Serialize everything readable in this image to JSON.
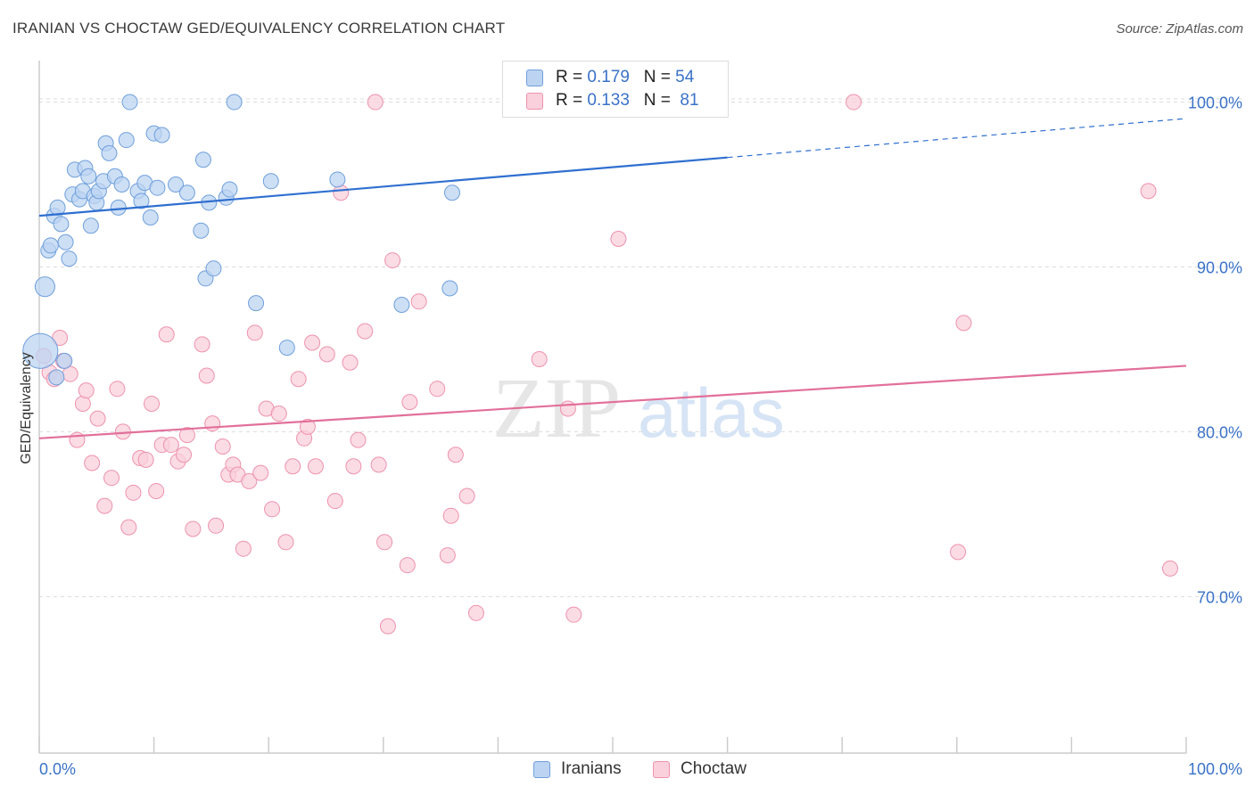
{
  "title": "IRANIAN VS CHOCTAW GED/EQUIVALENCY CORRELATION CHART",
  "source": "Source: ZipAtlas.com",
  "watermark": {
    "zip": "ZIP",
    "atlas": "atlas"
  },
  "legend": {
    "iranians": {
      "r_label": "R = ",
      "r_value": "0.179",
      "n_label": "N = ",
      "n_value": "54"
    },
    "choctaw": {
      "r_label": "R = ",
      "r_value": "0.133",
      "n_label": "N = ",
      "n_value": " 81"
    }
  },
  "bottom_legend": {
    "iranians": "Iranians",
    "choctaw": "Choctaw"
  },
  "colors": {
    "iranians_fill": "#bcd4f2",
    "iranians_stroke": "#6f9fdc",
    "iranians_line": "#2f6fd0",
    "choctaw_fill": "#fad0dc",
    "choctaw_stroke": "#ee92ad",
    "choctaw_line": "#e2709a",
    "tick_label": "#3a72c8",
    "grid": "#dcdcdc"
  },
  "chart_data": {
    "type": "scatter",
    "title": "IRANIAN VS CHOCTAW GED/EQUIVALENCY CORRELATION CHART",
    "xlabel": "",
    "ylabel": "GED/Equivalency",
    "xlim": [
      0,
      100
    ],
    "ylim": [
      60.5,
      102.3
    ],
    "x_tick_labels": [
      "0.0%",
      "100.0%"
    ],
    "y_ticks": [
      70,
      80,
      90,
      100
    ],
    "y_tick_labels": [
      "70.0%",
      "80.0%",
      "90.0%",
      "100.0%"
    ],
    "grid": true,
    "series": [
      {
        "name": "Iranians",
        "r": 0.179,
        "n": 54,
        "trend": {
          "x_solid_end": 60,
          "x_end": 100,
          "y0": 93.1,
          "y1": 99.0
        },
        "points": [
          [
            0.5,
            88.8
          ],
          [
            0.8,
            91.0
          ],
          [
            1.0,
            91.3
          ],
          [
            1.3,
            93.1
          ],
          [
            1.6,
            93.6
          ],
          [
            1.9,
            92.6
          ],
          [
            2.3,
            91.5
          ],
          [
            2.6,
            90.5
          ],
          [
            2.9,
            94.4
          ],
          [
            3.1,
            95.9
          ],
          [
            3.5,
            94.1
          ],
          [
            3.8,
            94.6
          ],
          [
            4.0,
            96.0
          ],
          [
            4.3,
            95.5
          ],
          [
            4.5,
            92.5
          ],
          [
            4.8,
            94.3
          ],
          [
            5.0,
            93.9
          ],
          [
            5.2,
            94.6
          ],
          [
            5.6,
            95.2
          ],
          [
            5.8,
            97.5
          ],
          [
            6.1,
            96.9
          ],
          [
            6.6,
            95.5
          ],
          [
            6.9,
            93.6
          ],
          [
            7.2,
            95.0
          ],
          [
            7.6,
            97.7
          ],
          [
            7.9,
            100.0
          ],
          [
            8.6,
            94.6
          ],
          [
            8.9,
            94.0
          ],
          [
            9.2,
            95.1
          ],
          [
            9.7,
            93.0
          ],
          [
            10.0,
            98.1
          ],
          [
            10.3,
            94.8
          ],
          [
            10.7,
            98.0
          ],
          [
            11.9,
            95.0
          ],
          [
            12.9,
            94.5
          ],
          [
            14.1,
            92.2
          ],
          [
            14.3,
            96.5
          ],
          [
            14.5,
            89.3
          ],
          [
            14.8,
            93.9
          ],
          [
            15.2,
            89.9
          ],
          [
            16.3,
            94.2
          ],
          [
            16.6,
            94.7
          ],
          [
            17.0,
            100.0
          ],
          [
            18.9,
            87.8
          ],
          [
            20.2,
            95.2
          ],
          [
            21.6,
            85.1
          ],
          [
            26.0,
            95.3
          ],
          [
            31.6,
            87.7
          ],
          [
            35.8,
            88.7
          ],
          [
            36.0,
            94.5
          ],
          [
            52.5,
            100.0
          ],
          [
            0.1,
            84.9
          ],
          [
            1.5,
            83.3
          ],
          [
            2.2,
            84.3
          ]
        ],
        "point_sizes": [
          1.3,
          1,
          1,
          1,
          1,
          1,
          1,
          1,
          1,
          1,
          1,
          1,
          1,
          1,
          1,
          1,
          1,
          1,
          1,
          1,
          1,
          1,
          1,
          1,
          1,
          1,
          1,
          1,
          1,
          1,
          1,
          1,
          1,
          1,
          1,
          1,
          1,
          1,
          1,
          1,
          1,
          1,
          1,
          1,
          1,
          1,
          1,
          1,
          1,
          1,
          1,
          2.3,
          1,
          1
        ]
      },
      {
        "name": "Choctaw",
        "r": 0.133,
        "n": 81,
        "trend": {
          "x_solid_end": 100,
          "x_end": 100,
          "y0": 79.6,
          "y1": 84.0
        },
        "points": [
          [
            0.4,
            84.6
          ],
          [
            0.9,
            83.6
          ],
          [
            1.3,
            83.2
          ],
          [
            1.8,
            85.7
          ],
          [
            2.1,
            84.3
          ],
          [
            2.7,
            83.5
          ],
          [
            3.3,
            79.5
          ],
          [
            3.8,
            81.7
          ],
          [
            4.1,
            82.5
          ],
          [
            4.6,
            78.1
          ],
          [
            5.1,
            80.8
          ],
          [
            5.7,
            75.5
          ],
          [
            6.3,
            77.2
          ],
          [
            6.8,
            82.6
          ],
          [
            7.3,
            80.0
          ],
          [
            7.8,
            74.2
          ],
          [
            8.2,
            76.3
          ],
          [
            8.8,
            78.4
          ],
          [
            9.3,
            78.3
          ],
          [
            9.8,
            81.7
          ],
          [
            10.2,
            76.4
          ],
          [
            10.7,
            79.2
          ],
          [
            11.1,
            85.9
          ],
          [
            11.5,
            79.2
          ],
          [
            12.1,
            78.2
          ],
          [
            12.6,
            78.6
          ],
          [
            12.9,
            79.8
          ],
          [
            13.4,
            74.1
          ],
          [
            14.2,
            85.3
          ],
          [
            14.6,
            83.4
          ],
          [
            15.1,
            80.5
          ],
          [
            15.4,
            74.3
          ],
          [
            16.0,
            79.1
          ],
          [
            16.5,
            77.4
          ],
          [
            16.9,
            78.0
          ],
          [
            17.3,
            77.4
          ],
          [
            17.8,
            72.9
          ],
          [
            18.3,
            77.0
          ],
          [
            18.8,
            86.0
          ],
          [
            19.3,
            77.5
          ],
          [
            19.8,
            81.4
          ],
          [
            20.3,
            75.3
          ],
          [
            20.9,
            81.1
          ],
          [
            21.5,
            73.3
          ],
          [
            22.1,
            77.9
          ],
          [
            22.6,
            83.2
          ],
          [
            23.1,
            79.6
          ],
          [
            23.4,
            80.3
          ],
          [
            23.8,
            85.4
          ],
          [
            24.1,
            77.9
          ],
          [
            25.1,
            84.7
          ],
          [
            25.8,
            75.8
          ],
          [
            26.3,
            94.5
          ],
          [
            27.1,
            84.2
          ],
          [
            27.4,
            77.9
          ],
          [
            27.8,
            79.5
          ],
          [
            28.4,
            86.1
          ],
          [
            29.3,
            100.0
          ],
          [
            29.6,
            78.0
          ],
          [
            30.1,
            73.3
          ],
          [
            30.4,
            68.2
          ],
          [
            30.8,
            90.4
          ],
          [
            32.1,
            71.9
          ],
          [
            32.3,
            81.8
          ],
          [
            33.1,
            87.9
          ],
          [
            34.7,
            82.6
          ],
          [
            35.6,
            72.5
          ],
          [
            35.9,
            74.9
          ],
          [
            36.3,
            78.6
          ],
          [
            37.3,
            76.1
          ],
          [
            38.1,
            69.0
          ],
          [
            43.6,
            84.4
          ],
          [
            46.1,
            81.4
          ],
          [
            46.6,
            68.9
          ],
          [
            50.5,
            91.7
          ],
          [
            56.5,
            100.0
          ],
          [
            71.0,
            100.0
          ],
          [
            80.1,
            72.7
          ],
          [
            80.6,
            86.6
          ],
          [
            96.7,
            94.6
          ],
          [
            98.6,
            71.7
          ]
        ],
        "point_sizes": [
          1,
          1,
          1,
          1,
          1,
          1,
          1,
          1,
          1,
          1,
          1,
          1,
          1,
          1,
          1,
          1,
          1,
          1,
          1,
          1,
          1,
          1,
          1,
          1,
          1,
          1,
          1,
          1,
          1,
          1,
          1,
          1,
          1,
          1,
          1,
          1,
          1,
          1,
          1,
          1,
          1,
          1,
          1,
          1,
          1,
          1,
          1,
          1,
          1,
          1,
          1,
          1,
          1,
          1,
          1,
          1,
          1,
          1,
          1,
          1,
          1,
          1,
          1,
          1,
          1,
          1,
          1,
          1,
          1,
          1,
          1,
          1,
          1,
          1,
          1,
          1,
          1,
          1,
          1,
          1,
          1
        ]
      }
    ]
  }
}
